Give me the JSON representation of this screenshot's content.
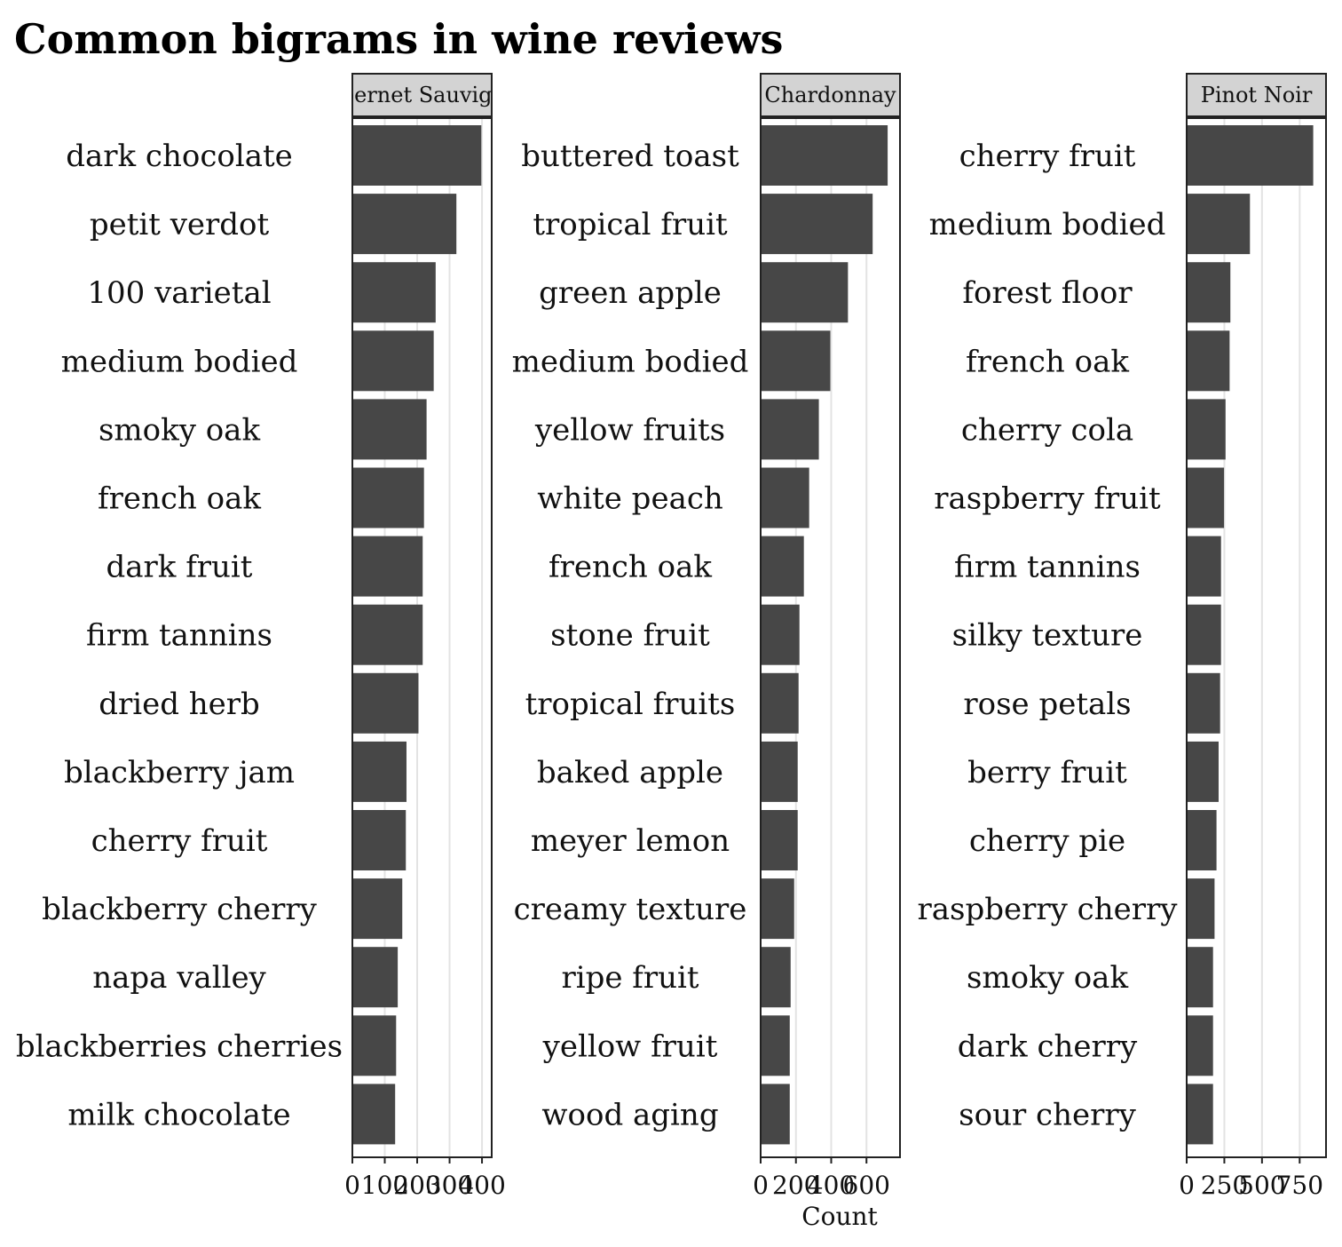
{
  "chart_data": {
    "type": "bar",
    "orientation": "horizontal",
    "title": "Common bigrams in wine reviews",
    "xlabel": "Count",
    "ylabel": "",
    "grid": "vertical-major",
    "legend": "none",
    "bar_color": "#474747",
    "strip_color": "#d3d3d3",
    "gridline_color": "#e3e3e3",
    "panels": [
      {
        "name": "Cabernet Sauvignon",
        "xlim": [
          0,
          430
        ],
        "ticks": [
          0,
          100,
          200,
          300,
          400
        ],
        "categories": [
          "dark chocolate",
          "petit verdot",
          "100 varietal",
          "medium bodied",
          "smoky oak",
          "french oak",
          "dark fruit",
          "firm tannins",
          "dried herb",
          "blackberry jam",
          "cherry fruit",
          "blackberry cherry",
          "napa valley",
          "blackberries cherries",
          "milk chocolate"
        ],
        "values": [
          398,
          321,
          257,
          251,
          229,
          221,
          217,
          217,
          204,
          167,
          165,
          154,
          140,
          135,
          132
        ]
      },
      {
        "name": "Chardonnay",
        "xlim": [
          0,
          790
        ],
        "ticks": [
          0,
          200,
          400,
          600
        ],
        "categories": [
          "buttered toast",
          "tropical fruit",
          "green apple",
          "medium bodied",
          "yellow fruits",
          "white peach",
          "french oak",
          "stone fruit",
          "tropical fruits",
          "baked apple",
          "meyer lemon",
          "creamy texture",
          "ripe fruit",
          "yellow fruit",
          "wood aging"
        ],
        "values": [
          720,
          635,
          495,
          395,
          330,
          275,
          245,
          220,
          215,
          210,
          210,
          190,
          170,
          165,
          165
        ]
      },
      {
        "name": "Pinot Noir",
        "xlim": [
          0,
          925
        ],
        "ticks": [
          0,
          250,
          500,
          750
        ],
        "categories": [
          "cherry fruit",
          "medium bodied",
          "forest floor",
          "french oak",
          "cherry cola",
          "raspberry fruit",
          "firm tannins",
          "silky texture",
          "rose petals",
          "berry fruit",
          "cherry pie",
          "raspberry cherry",
          "smoky oak",
          "dark cherry",
          "sour cherry"
        ],
        "values": [
          840,
          420,
          290,
          285,
          258,
          248,
          228,
          228,
          222,
          212,
          198,
          185,
          175,
          175,
          175
        ]
      }
    ]
  }
}
